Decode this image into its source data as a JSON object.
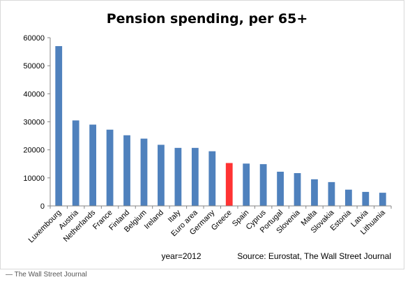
{
  "chart_data": {
    "type": "bar",
    "title": "Pension spending, per 65+",
    "xlabel": "",
    "ylabel": "",
    "ylim": [
      0,
      60000
    ],
    "yticks": [
      "0",
      "10000",
      "20000",
      "30000",
      "40000",
      "50000",
      "60000"
    ],
    "categories": [
      "Luxembourg",
      "Austria",
      "Netherlands",
      "France",
      "Finland",
      "Belgium",
      "Ireland",
      "Italy",
      "Euro area",
      "Germany",
      "Greece",
      "Spain",
      "Cyprus",
      "Portugal",
      "Slovenia",
      "Malta",
      "Slovakia",
      "Estonia",
      "Latvia",
      "Lithuania"
    ],
    "values": [
      57000,
      30500,
      29000,
      27200,
      25200,
      24000,
      21800,
      20700,
      20700,
      19500,
      15300,
      15100,
      14900,
      12200,
      11700,
      9500,
      8500,
      5800,
      5000,
      4700
    ],
    "highlight_index": 10,
    "colors": {
      "bar": "#4f81bd",
      "highlight": "#ff3333",
      "axis": "#868686"
    },
    "grid": false,
    "legend": "none",
    "annotations": {
      "year": "year=2012",
      "source": "Source: Eurostat, The Wall Street Journal"
    }
  },
  "credit": "— The Wall Street Journal"
}
